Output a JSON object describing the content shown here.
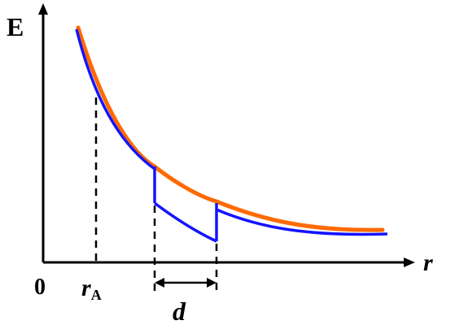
{
  "labels": {
    "y_axis": "E",
    "x_axis": "r",
    "origin": "0",
    "r_a_main": "r",
    "r_a_sub": "A",
    "gap": "d"
  },
  "colors": {
    "outer_curve": "#ff6a00",
    "inner_curve": "#1414ff",
    "axes": "#000000",
    "guides": "#000000"
  }
}
